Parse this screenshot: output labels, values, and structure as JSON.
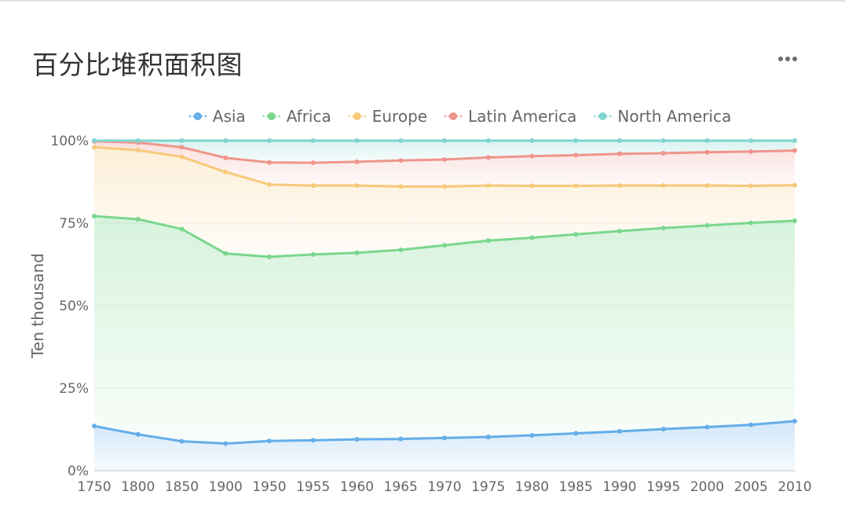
{
  "card": {
    "title": "百分比堆积面积图",
    "more_icon": "more-horizontal-icon"
  },
  "chart_data": {
    "type": "area",
    "stacking": "percent",
    "title": "百分比堆积面积图",
    "xlabel": "",
    "ylabel": "Ten thousand",
    "x": [
      "1750",
      "1800",
      "1850",
      "1900",
      "1950",
      "1955",
      "1960",
      "1965",
      "1970",
      "1975",
      "1980",
      "1985",
      "1990",
      "1995",
      "2000",
      "2005",
      "2010"
    ],
    "y_ticks": [
      "0%",
      "25%",
      "50%",
      "75%",
      "100%"
    ],
    "ylim": [
      0,
      100
    ],
    "grid": true,
    "legend_position": "top-center",
    "series": [
      {
        "name": "Asia",
        "color": "#64aee9",
        "values": [
          13.5,
          11,
          8.9,
          8.2,
          9,
          9.2,
          9.5,
          9.6,
          9.9,
          10.2,
          10.7,
          11.3,
          11.9,
          12.6,
          13.2,
          13.9,
          15
        ]
      },
      {
        "name": "Africa",
        "color": "#7ad78e",
        "values": [
          63.6,
          65.2,
          64.3,
          57.6,
          55.8,
          56.3,
          56.5,
          57.3,
          58.4,
          59.5,
          59.9,
          60.3,
          60.7,
          60.9,
          61.1,
          61.2,
          60.7
        ]
      },
      {
        "name": "Europe",
        "color": "#f7c97a",
        "values": [
          20.9,
          20.9,
          21.9,
          24.7,
          21.9,
          20.9,
          20.4,
          19.2,
          17.8,
          16.7,
          15.7,
          14.7,
          13.8,
          12.9,
          12.1,
          11.2,
          10.8
        ]
      },
      {
        "name": "Latin America",
        "color": "#ee958c",
        "values": [
          1.8,
          2.3,
          2.9,
          4.3,
          6.7,
          6.9,
          7.2,
          7.9,
          8.2,
          8.5,
          9,
          9.3,
          9.6,
          9.8,
          10.1,
          10.4,
          10.5
        ]
      },
      {
        "name": "North America",
        "color": "#7fd5cc",
        "values": [
          0.2,
          0.6,
          2,
          5.2,
          6.6,
          6.7,
          6.4,
          6,
          5.7,
          5.1,
          4.7,
          4.4,
          4,
          3.8,
          3.5,
          3.3,
          3
        ]
      }
    ]
  }
}
